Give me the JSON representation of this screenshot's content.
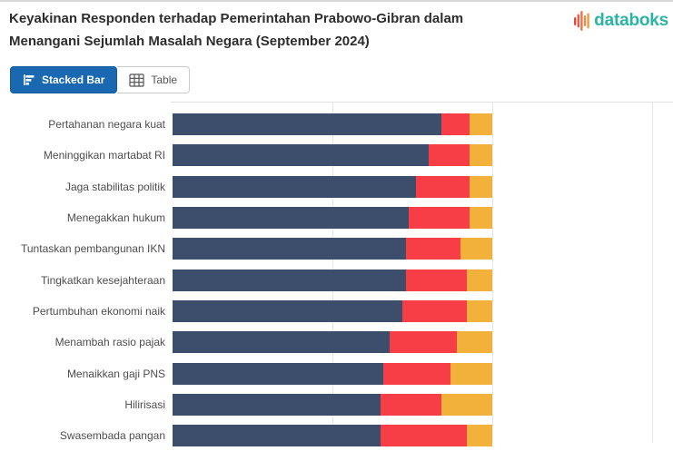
{
  "header": {
    "title_line1": "Keyakinan Responden terhadap Pemerintahan Prabowo-Gibran dalam",
    "title_line2": "Menangani Sejumlah Masalah Negara (September 2024)",
    "brand": "databoks"
  },
  "toolbar": {
    "stacked_bar_label": "Stacked Bar",
    "table_label": "Table"
  },
  "colors": {
    "navy_segment": "#3d4d6c",
    "red_segment": "#f73e46",
    "amber_segment": "#f1b13b",
    "active_button_blue": "#1a68b2",
    "brand_teal": "#2bb3a3",
    "gridline_grey": "#e7e7e7",
    "label_grey": "#4d4d4d",
    "title_dark": "#2d2d2d"
  },
  "chart_data": {
    "type": "bar",
    "variant": "stacked-horizontal-100pct",
    "title": "Keyakinan Responden terhadap Pemerintahan Prabowo-Gibran dalam Menangani Sejumlah Masalah Negara (September 2024)",
    "categories": [
      "Pertahanan negara kuat",
      "Meninggikan martabat RI",
      "Jaga stabilitas politik",
      "Menegakkan hukum",
      "Tuntaskan pembangunan IKN",
      "Tingkatkan kesejahteraan",
      "Pertumbuhan ekonomi naik",
      "Menambah rasio pajak",
      "Menaikkan gaji PNS",
      "Hilirisasi",
      "Swasembada pangan"
    ],
    "series": [
      {
        "name": "navy",
        "color": "#3d4d6c",
        "values": [
          84,
          80,
          76,
          74,
          73,
          73,
          72,
          68,
          66,
          65,
          65
        ]
      },
      {
        "name": "red",
        "color": "#f73e46",
        "values": [
          9,
          13,
          17,
          19,
          17,
          19,
          20,
          21,
          21,
          19,
          27
        ]
      },
      {
        "name": "amber",
        "color": "#f1b13b",
        "values": [
          7,
          7,
          7,
          7,
          10,
          8,
          8,
          11,
          13,
          16,
          8
        ]
      }
    ],
    "x_gridlines_percent": [
      50,
      100,
      150
    ],
    "xlim": [
      0,
      157
    ],
    "tick_labels_visible": false,
    "legend_visible": false,
    "note": "Numeric values estimated from bar-segment pixel lengths; data labels, axis ticks and legend are cropped out of the visible screenshot."
  }
}
